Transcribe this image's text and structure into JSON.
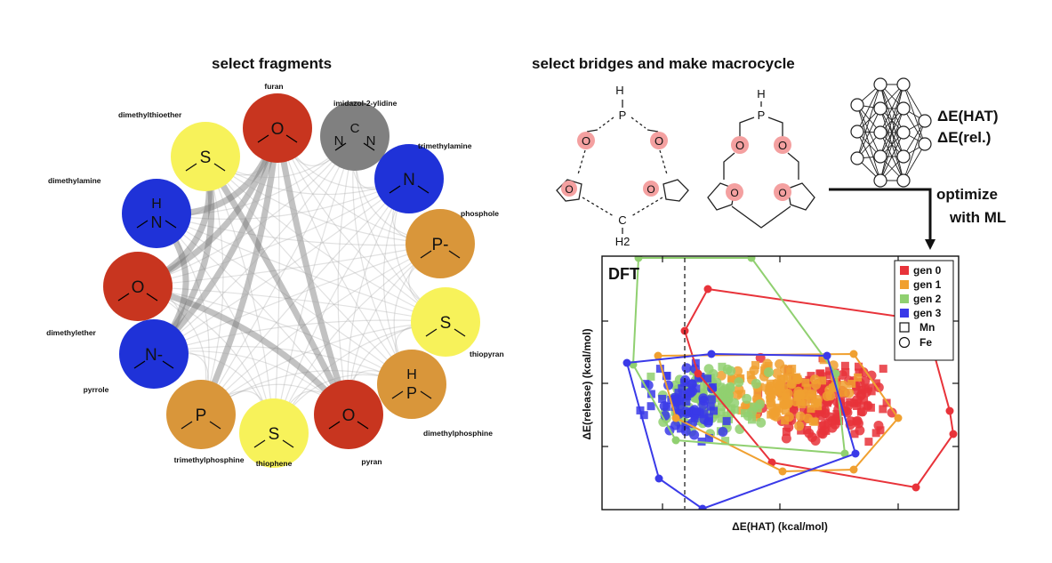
{
  "headings": {
    "fragments": "select fragments",
    "bridges": "select bridges and make macrocycle"
  },
  "fragments": [
    {
      "name": "furan",
      "color": "#c8351f",
      "glyph": "O"
    },
    {
      "name": "imidazol-2-ylidine",
      "color": "#808080",
      "glyph": "N C N"
    },
    {
      "name": "trimethylamine",
      "color": "#1f32d8",
      "glyph": "N"
    },
    {
      "name": "phosphole",
      "color": "#d9963a",
      "glyph": "P-"
    },
    {
      "name": "thiopyran",
      "color": "#f7f25a",
      "glyph": "S"
    },
    {
      "name": "dimethylphosphine",
      "color": "#d9963a",
      "glyph": "H P"
    },
    {
      "name": "pyran",
      "color": "#c8351f",
      "glyph": "O"
    },
    {
      "name": "thiophene",
      "color": "#f7f25a",
      "glyph": "S"
    },
    {
      "name": "trimethylphosphine",
      "color": "#d9963a",
      "glyph": "P"
    },
    {
      "name": "pyrrole",
      "color": "#1f32d8",
      "glyph": "N-"
    },
    {
      "name": "dimethylether",
      "color": "#c8351f",
      "glyph": "O"
    },
    {
      "name": "dimethylamine",
      "color": "#1f32d8",
      "glyph": "H N"
    },
    {
      "name": "dimethylthioether",
      "color": "#f7f25a",
      "glyph": "S"
    }
  ],
  "bridge_labels": {
    "h": "H",
    "p": "P",
    "o": "O",
    "c": "C",
    "h2": "H2"
  },
  "ml": {
    "out1": "ΔE(HAT)",
    "out2": "ΔE(rel.)",
    "optimize": "optimize",
    "with_ml": "with ML"
  },
  "chart_data": {
    "type": "scatter",
    "title": "DFT",
    "xlabel": "ΔE(HAT) (kcal/mol)",
    "ylabel": "ΔE(release) (kcal/mol)",
    "grid": false,
    "legend_position": "top-right",
    "series": [
      {
        "name": "gen 0",
        "color": "#e8333a"
      },
      {
        "name": "gen 1",
        "color": "#f0a030"
      },
      {
        "name": "gen 2",
        "color": "#90d070"
      },
      {
        "name": "gen 3",
        "color": "#3a3ae8"
      }
    ],
    "markers": [
      {
        "name": "Mn",
        "shape": "square"
      },
      {
        "name": "Fe",
        "shape": "circle"
      }
    ]
  }
}
